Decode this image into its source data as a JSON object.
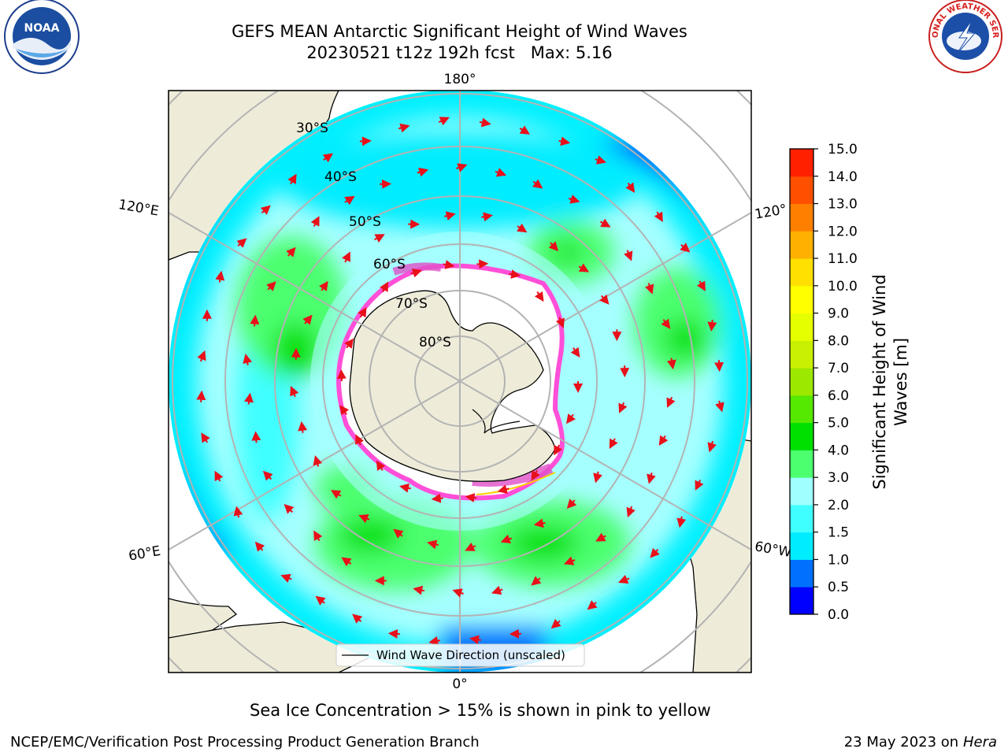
{
  "header": {
    "title": "GEFS MEAN Antarctic Significant Height of Wind Waves",
    "subtitle": "20230521 t12z 192h fcst   Max: 5.16",
    "noaa_logo_text": "NOAA",
    "nws_logo_text": "NATIONAL WEATHER SERVICE"
  },
  "map": {
    "projection": "south-polar-stereographic",
    "legend_label": "Wind Wave Direction (unscaled)",
    "latitude_labels": [
      "30°S",
      "40°S",
      "50°S",
      "60°S",
      "70°S",
      "80°S"
    ],
    "longitude_labels": {
      "top": "180°",
      "bottom": "0°",
      "upper_left": "120°E",
      "lower_left": "60°E",
      "upper_right": "120°",
      "lower_right": "60°W"
    },
    "colors": {
      "land": "#eeecd9",
      "ice_shelf": "#ffffff",
      "sea_ice_edge": "#ff4fd8",
      "arrow": "#e8101a",
      "grid": "#b3b3b3"
    }
  },
  "colorbar": {
    "label_line1": "Significant Height of Wind",
    "label_line2": "Waves [m]",
    "ticks": [
      "0.0",
      "0.5",
      "1.0",
      "1.5",
      "2.0",
      "3.0",
      "4.0",
      "5.0",
      "6.0",
      "7.0",
      "8.0",
      "9.0",
      "10.0",
      "11.0",
      "12.0",
      "13.0",
      "14.0",
      "15.0"
    ],
    "colors": [
      "#0000ff",
      "#0070ff",
      "#00ecff",
      "#40ffff",
      "#a0ffff",
      "#4cff6e",
      "#00e000",
      "#55e800",
      "#9de800",
      "#c8f000",
      "#e6ff00",
      "#ffff00",
      "#ffe000",
      "#ffb000",
      "#ff8000",
      "#ff5000",
      "#ff2000"
    ]
  },
  "footer": {
    "sea_ice_note": "Sea Ice Concentration > 15% is shown in pink to yellow",
    "branch": "NCEP/EMC/Verification Post Processing Product Generation Branch",
    "date": "23 May 2023 on",
    "machine": "Hera"
  }
}
